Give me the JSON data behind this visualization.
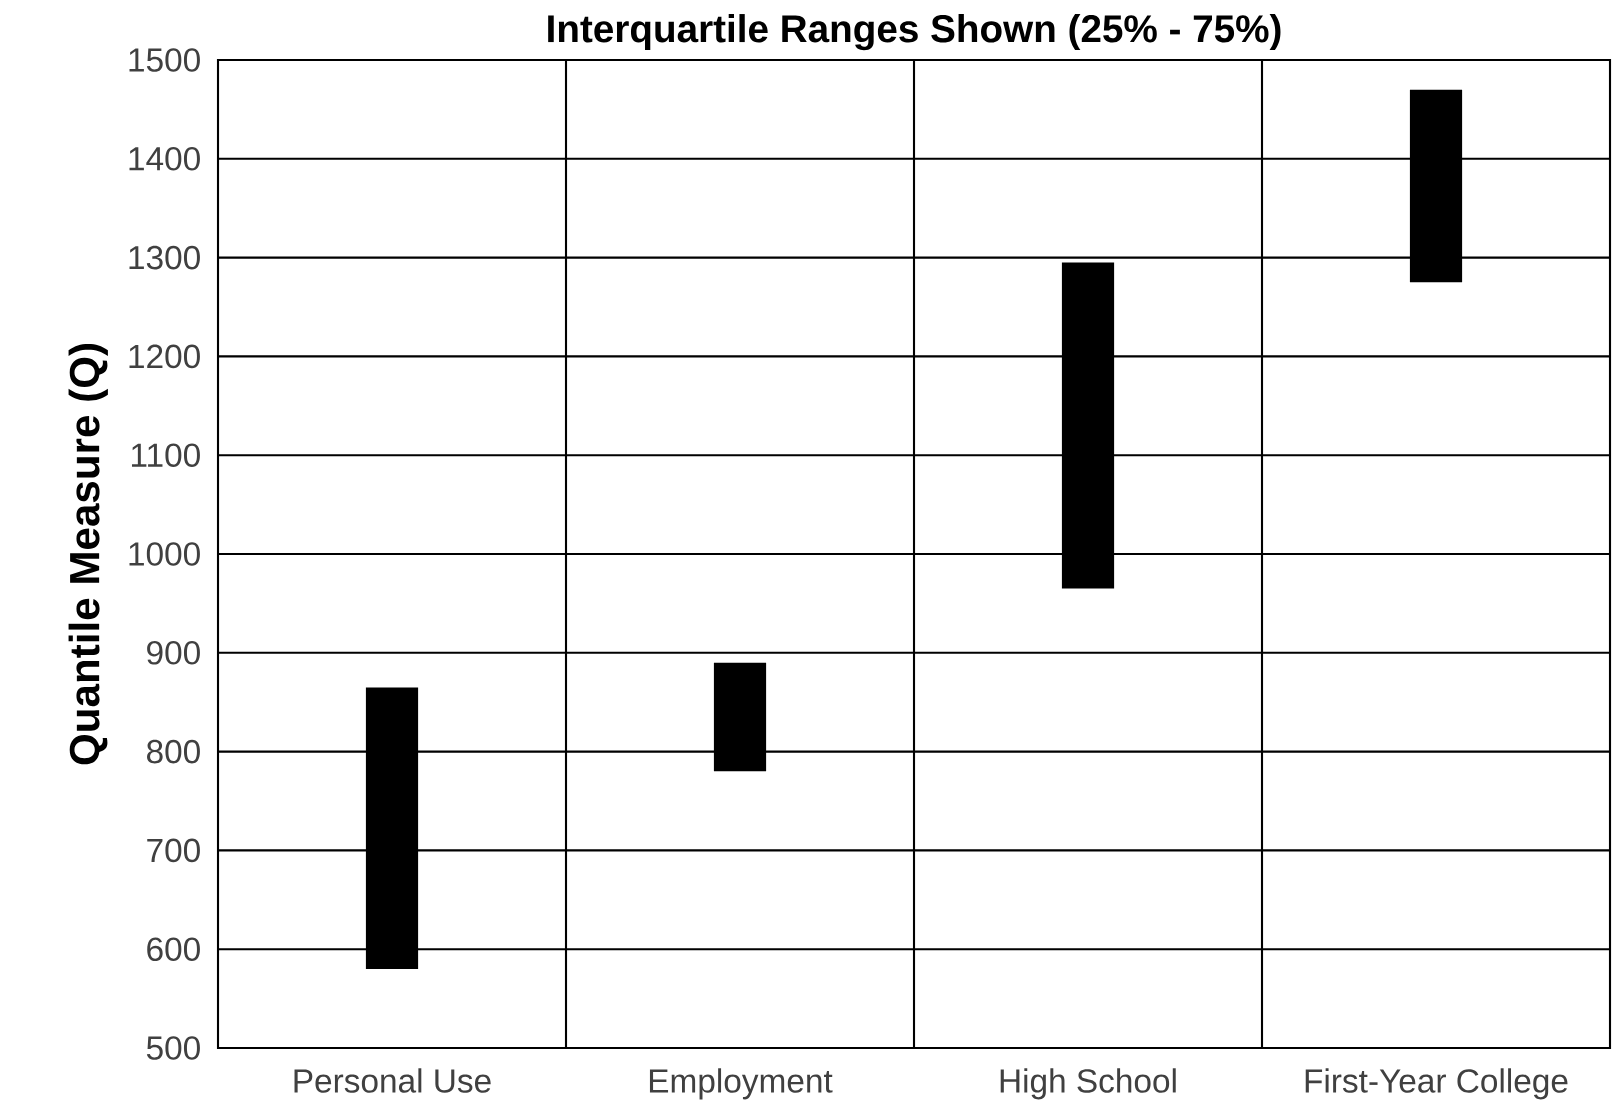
{
  "chart_data": {
    "type": "bar",
    "title": "Interquartile Ranges Shown (25% - 75%)",
    "ylabel": "Quantile Measure (Q)",
    "categories": [
      "Personal Use",
      "Employment",
      "High School",
      "First-Year College"
    ],
    "base": [
      580,
      780,
      965,
      1275
    ],
    "values": [
      285,
      110,
      330,
      195
    ],
    "color": "#000000",
    "ylim": [
      500,
      1500
    ],
    "yticks": [
      500,
      600,
      700,
      800,
      900,
      1000,
      1100,
      1200,
      1300,
      1400,
      1500
    ],
    "grid": true
  }
}
